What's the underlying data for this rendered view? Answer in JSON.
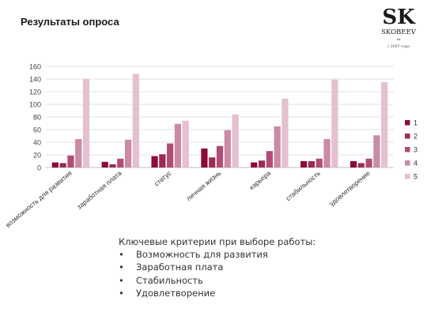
{
  "page": {
    "title": "Результаты опроса"
  },
  "logo": {
    "monogram": "SK",
    "name": "SKOBEEV",
    "small": "≈",
    "year": "с 2007 года"
  },
  "colors": [
    "#8b0a37",
    "#9c2b55",
    "#b24c76",
    "#cb8aa6",
    "#e6bfd0"
  ],
  "chart_data": {
    "type": "bar",
    "categories": [
      "возможность для развития",
      "заработная плата",
      "статус",
      "личная жизнь",
      "карьера",
      "стабильность",
      "удовлетворение"
    ],
    "series": [
      {
        "name": "1",
        "values": [
          8,
          9,
          18,
          30,
          8,
          10,
          10
        ]
      },
      {
        "name": "2",
        "values": [
          7,
          5,
          21,
          16,
          11,
          10,
          7
        ]
      },
      {
        "name": "3",
        "values": [
          19,
          14,
          38,
          34,
          26,
          14,
          14
        ]
      },
      {
        "name": "4",
        "values": [
          45,
          44,
          69,
          59,
          65,
          45,
          51
        ]
      },
      {
        "name": "5",
        "values": [
          140,
          148,
          74,
          84,
          109,
          139,
          135
        ]
      }
    ],
    "yticks": [
      "0",
      "20",
      "40",
      "60",
      "80",
      "100",
      "120",
      "140",
      "160"
    ],
    "ylim": [
      0,
      160
    ],
    "grid": true,
    "legend": "right"
  },
  "notes": {
    "heading": "Ключевые критерии при выборе работы:",
    "bullet": "•",
    "items": [
      "Возможность для развития",
      "Заработная плата",
      "Стабильность",
      "Удовлетворение"
    ]
  }
}
